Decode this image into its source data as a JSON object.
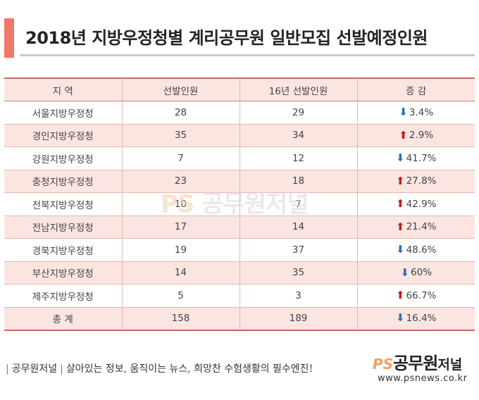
{
  "title": "2018년 지방우정청별 계리공무원 일반모집 선발예정인원",
  "table": {
    "headers": [
      "지 역",
      "선발인원",
      "16년 선발인원",
      "증 감"
    ],
    "rows": [
      {
        "region": "서울지방우정청",
        "selected": "28",
        "selected_2016": "29",
        "change": "3.4%",
        "direction": "down"
      },
      {
        "region": "경인지방우정청",
        "selected": "35",
        "selected_2016": "34",
        "change": "2.9%",
        "direction": "up"
      },
      {
        "region": "강원지방우정청",
        "selected": "7",
        "selected_2016": "12",
        "change": "41.7%",
        "direction": "down"
      },
      {
        "region": "충청지방우정청",
        "selected": "23",
        "selected_2016": "18",
        "change": "27.8%",
        "direction": "up"
      },
      {
        "region": "전북지방우정청",
        "selected": "10",
        "selected_2016": "7",
        "change": "42.9%",
        "direction": "up"
      },
      {
        "region": "전남지방우정청",
        "selected": "17",
        "selected_2016": "14",
        "change": "21.4%",
        "direction": "up"
      },
      {
        "region": "경북지방우정청",
        "selected": "19",
        "selected_2016": "37",
        "change": "48.6%",
        "direction": "down"
      },
      {
        "region": "부산지방우정청",
        "selected": "14",
        "selected_2016": "35",
        "change": "60%",
        "direction": "down"
      },
      {
        "region": "제주지방우정청",
        "selected": "5",
        "selected_2016": "3",
        "change": "66.7%",
        "direction": "up"
      }
    ],
    "total": {
      "region": "총 계",
      "selected": "158",
      "selected_2016": "189",
      "change": "16.4%",
      "direction": "down"
    }
  },
  "watermark": {
    "ps": "PS",
    "name": "공무원저널"
  },
  "footer": {
    "brand": "공무원저널",
    "slogan": "살아있는 정보, 움직이는 뉴스, 희망찬 수험생활의 필수엔진!"
  },
  "logo": {
    "ps": "PS",
    "name": "공무원",
    "suffix": "저널",
    "url": "www.psnews.co.kr"
  },
  "colors": {
    "accent": "#f07868",
    "row_tint": "#fbe5e1",
    "arrow_up": "#c8151b",
    "arrow_down": "#2a6fb8"
  },
  "icons": {
    "up": "arrow-up-icon",
    "down": "arrow-down-icon"
  }
}
